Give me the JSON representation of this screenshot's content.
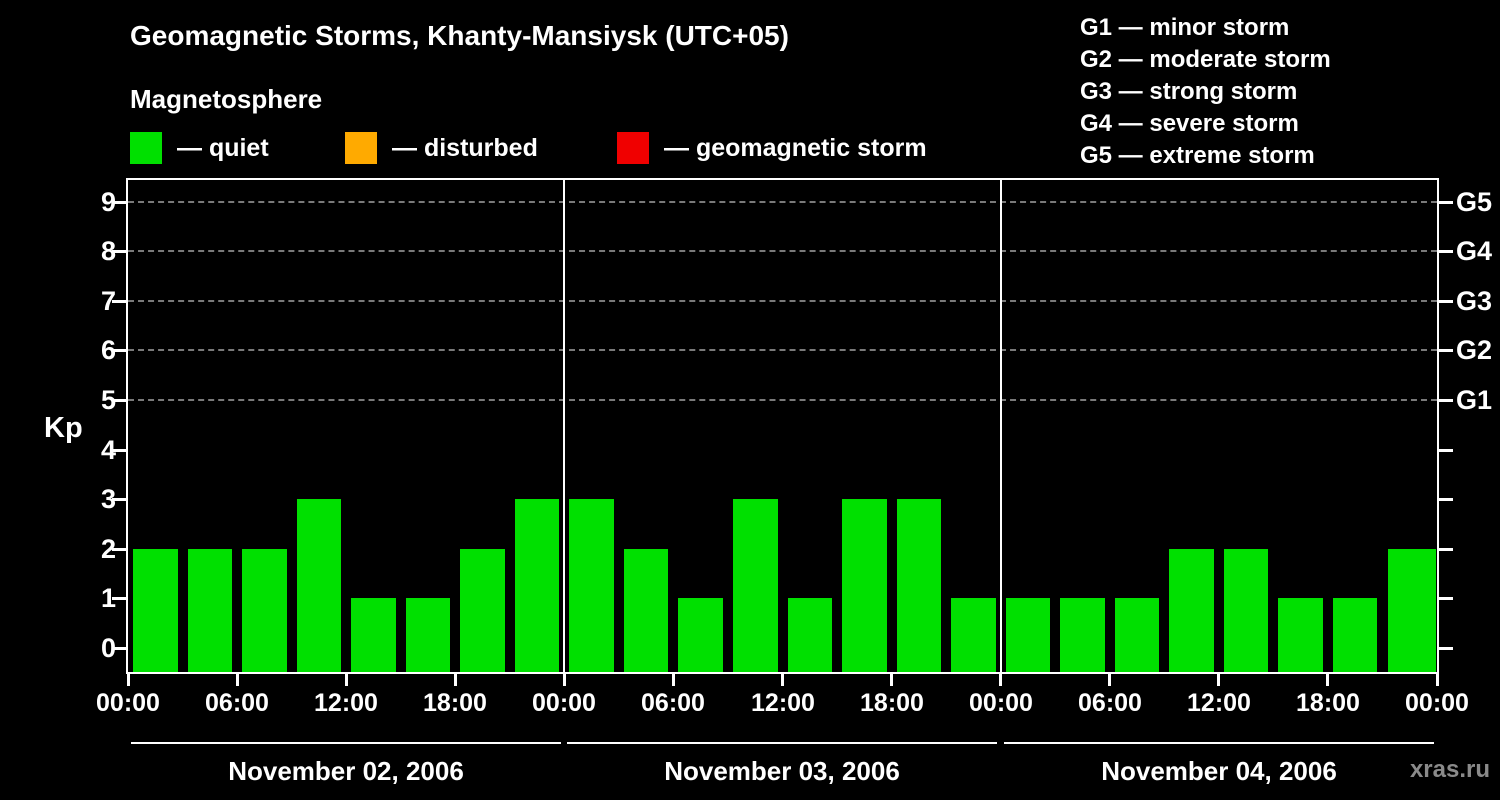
{
  "title": "Geomagnetic Storms, Khanty-Mansiysk (UTC+05)",
  "subtitle": "Magnetosphere",
  "legend": {
    "items": [
      {
        "label": "— quiet",
        "color": "#00e000"
      },
      {
        "label": "— disturbed",
        "color": "#ffaa00"
      },
      {
        "label": "— geomagnetic storm",
        "color": "#f00000"
      }
    ]
  },
  "storm_scale_legend": [
    "G1 — minor storm",
    "G2 — moderate storm",
    "G3 — strong storm",
    "G4 — severe storm",
    "G5 — extreme storm"
  ],
  "watermark": "xras.ru",
  "chart_data": {
    "type": "bar",
    "title": "Geomagnetic Storms, Khanty-Mansiysk (UTC+05)",
    "subtitle": "Magnetosphere",
    "ylabel": "Kp",
    "ylim": [
      0,
      9.5
    ],
    "y_ticks": [
      0,
      1,
      2,
      3,
      4,
      5,
      6,
      7,
      8,
      9
    ],
    "gridlines_kp": [
      5,
      6,
      7,
      8,
      9
    ],
    "grid_style": "dashed",
    "interval_hours": 3,
    "x_tick_labels": [
      "00:00",
      "06:00",
      "12:00",
      "18:00",
      "00:00",
      "06:00",
      "12:00",
      "18:00",
      "00:00",
      "06:00",
      "12:00",
      "18:00",
      "00:00"
    ],
    "right_axis_labels": [
      {
        "label": "G1",
        "kp": 5
      },
      {
        "label": "G2",
        "kp": 6
      },
      {
        "label": "G3",
        "kp": 7
      },
      {
        "label": "G4",
        "kp": 8
      },
      {
        "label": "G5",
        "kp": 9
      }
    ],
    "days": [
      {
        "label": "November 02, 2006",
        "kp": [
          2,
          2,
          2,
          3,
          1,
          1,
          2,
          3
        ]
      },
      {
        "label": "November 03, 2006",
        "kp": [
          3,
          2,
          1,
          3,
          1,
          3,
          3,
          1
        ]
      },
      {
        "label": "November 04, 2006",
        "kp": [
          1,
          1,
          1,
          2,
          2,
          1,
          1,
          2
        ]
      }
    ],
    "colors": {
      "quiet": "#00e000",
      "disturbed": "#ffaa00",
      "storm": "#f00000"
    }
  }
}
